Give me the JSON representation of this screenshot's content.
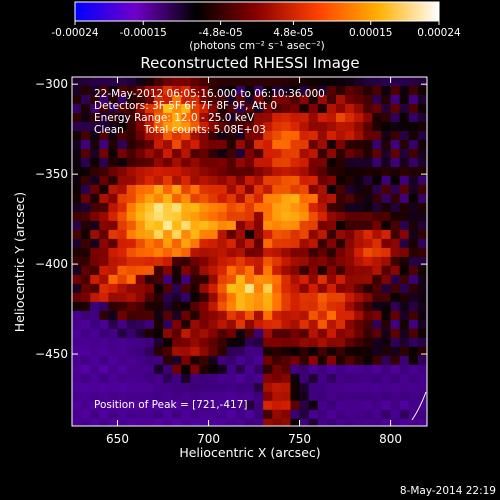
{
  "colorbar": {
    "tick_labels": [
      "-0.00024",
      "-0.00015",
      "-4.8e-05",
      "4.8e-05",
      "0.00015",
      "0.00024"
    ],
    "tick_values": [
      -0.00024,
      -0.00015,
      -4.8e-05,
      4.8e-05,
      0.00015,
      0.00024
    ],
    "range": [
      -0.00024,
      0.00024
    ],
    "units_label": "(photons cm⁻² s⁻¹ asec⁻²)",
    "colors": [
      "#0000ff",
      "#7000c8",
      "#000000",
      "#8a0000",
      "#ff4000",
      "#ffb000",
      "#ffffff"
    ]
  },
  "footer": {
    "timestamp": "8-May-2014 22:19"
  },
  "chart_data": {
    "type": "heatmap",
    "title": "Reconstructed RHESSI Image",
    "xlabel": "Heliocentric X (arcsec)",
    "ylabel": "Heliocentric Y (arcsec)",
    "xlim": [
      625,
      820
    ],
    "ylim": [
      -490,
      -296
    ],
    "x_ticks": [
      650,
      700,
      750,
      800
    ],
    "x_tick_labels": [
      "650",
      "700",
      "750",
      "800"
    ],
    "y_ticks": [
      -300,
      -350,
      -400,
      -450
    ],
    "y_tick_labels": [
      "−300",
      "−350",
      "−400",
      "−450"
    ],
    "annotations": [
      "22-May-2012 06:05:16.000 to 06:10:36.000",
      "Detectors: 3F 5F 6F 7F 8F 9F, Att 0",
      "Energy Range: 12.0 - 25.0 keV",
      "Clean      Total counts: 5.08E+03"
    ],
    "peak_label": "Position of Peak = [721,-417]",
    "peak": {
      "x": 721,
      "y": -417
    },
    "grid": false
  }
}
